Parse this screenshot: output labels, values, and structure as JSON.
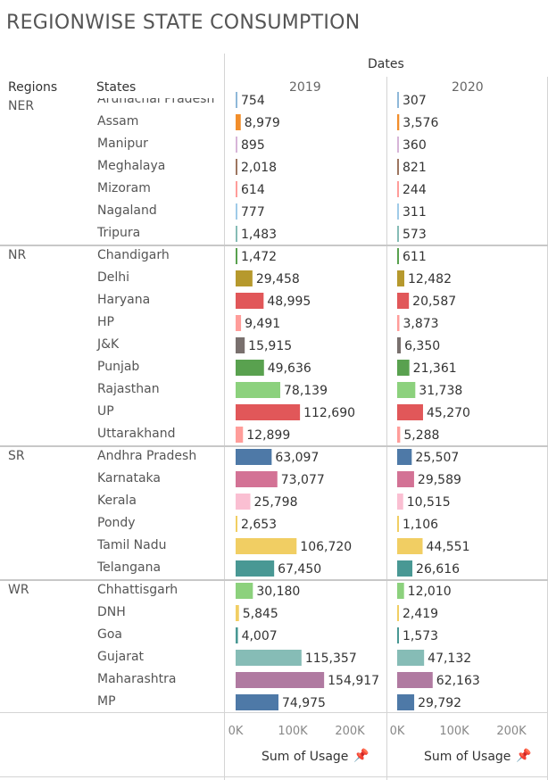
{
  "title": "REGIONWISE STATE CONSUMPTION",
  "headers": {
    "regions": "Regions",
    "states": "States",
    "dates": "Dates"
  },
  "footer": {
    "measure_label": "Sum of Usage",
    "pin_icon": "pin-icon"
  },
  "chart_data": {
    "type": "bar",
    "orientation": "horizontal",
    "title": "REGIONWISE STATE CONSUMPTION",
    "columns": [
      "2019",
      "2020"
    ],
    "x_ticks": [
      "0K",
      "100K",
      "200K"
    ],
    "xlim": [
      0,
      250000
    ],
    "rows": [
      {
        "region": "NER",
        "state": "Arunachal Pradesh",
        "color": "#8fb8d9",
        "v2019": 754,
        "v2020": 307
      },
      {
        "region": "NER",
        "state": "Assam",
        "color": "#f28e2b",
        "v2019": 8979,
        "v2020": 3576
      },
      {
        "region": "NER",
        "state": "Manipur",
        "color": "#d7b5d8",
        "v2019": 895,
        "v2020": 360
      },
      {
        "region": "NER",
        "state": "Meghalaya",
        "color": "#9d7660",
        "v2019": 2018,
        "v2020": 821
      },
      {
        "region": "NER",
        "state": "Mizoram",
        "color": "#ff9d9a",
        "v2019": 614,
        "v2020": 244
      },
      {
        "region": "NER",
        "state": "Nagaland",
        "color": "#a0cbe8",
        "v2019": 777,
        "v2020": 311
      },
      {
        "region": "NER",
        "state": "Tripura",
        "color": "#86bcb6",
        "v2019": 1483,
        "v2020": 573
      },
      {
        "region": "NR",
        "state": "Chandigarh",
        "color": "#59a14f",
        "v2019": 1472,
        "v2020": 611
      },
      {
        "region": "NR",
        "state": "Delhi",
        "color": "#b6992d",
        "v2019": 29458,
        "v2020": 12482
      },
      {
        "region": "NR",
        "state": "Haryana",
        "color": "#e15759",
        "v2019": 48995,
        "v2020": 20587
      },
      {
        "region": "NR",
        "state": "HP",
        "color": "#ff9d9a",
        "v2019": 9491,
        "v2020": 3873
      },
      {
        "region": "NR",
        "state": "J&K",
        "color": "#79706e",
        "v2019": 15915,
        "v2020": 6350
      },
      {
        "region": "NR",
        "state": "Punjab",
        "color": "#59a14f",
        "v2019": 49636,
        "v2020": 21361
      },
      {
        "region": "NR",
        "state": "Rajasthan",
        "color": "#8cd17d",
        "v2019": 78139,
        "v2020": 31738
      },
      {
        "region": "NR",
        "state": "UP",
        "color": "#e15759",
        "v2019": 112690,
        "v2020": 45270
      },
      {
        "region": "NR",
        "state": "Uttarakhand",
        "color": "#ff9d9a",
        "v2019": 12899,
        "v2020": 5288
      },
      {
        "region": "SR",
        "state": "Andhra Pradesh",
        "color": "#4e79a7",
        "v2019": 63097,
        "v2020": 25507
      },
      {
        "region": "SR",
        "state": "Karnataka",
        "color": "#d37295",
        "v2019": 73077,
        "v2020": 29589
      },
      {
        "region": "SR",
        "state": "Kerala",
        "color": "#fabfd2",
        "v2019": 25798,
        "v2020": 10515
      },
      {
        "region": "SR",
        "state": "Pondy",
        "color": "#f1ce63",
        "v2019": 2653,
        "v2020": 1106
      },
      {
        "region": "SR",
        "state": "Tamil Nadu",
        "color": "#f1ce63",
        "v2019": 106720,
        "v2020": 44551
      },
      {
        "region": "SR",
        "state": "Telangana",
        "color": "#499894",
        "v2019": 67450,
        "v2020": 26616
      },
      {
        "region": "WR",
        "state": "Chhattisgarh",
        "color": "#8cd17d",
        "v2019": 30180,
        "v2020": 12010
      },
      {
        "region": "WR",
        "state": "DNH",
        "color": "#f1ce63",
        "v2019": 5845,
        "v2020": 2419
      },
      {
        "region": "WR",
        "state": "Goa",
        "color": "#499894",
        "v2019": 4007,
        "v2020": 1573
      },
      {
        "region": "WR",
        "state": "Gujarat",
        "color": "#86bcb6",
        "v2019": 115357,
        "v2020": 47132
      },
      {
        "region": "WR",
        "state": "Maharashtra",
        "color": "#b07aa1",
        "v2019": 154917,
        "v2020": 62163
      },
      {
        "region": "WR",
        "state": "MP",
        "color": "#4e79a7",
        "v2019": 74975,
        "v2020": 29792
      }
    ]
  }
}
